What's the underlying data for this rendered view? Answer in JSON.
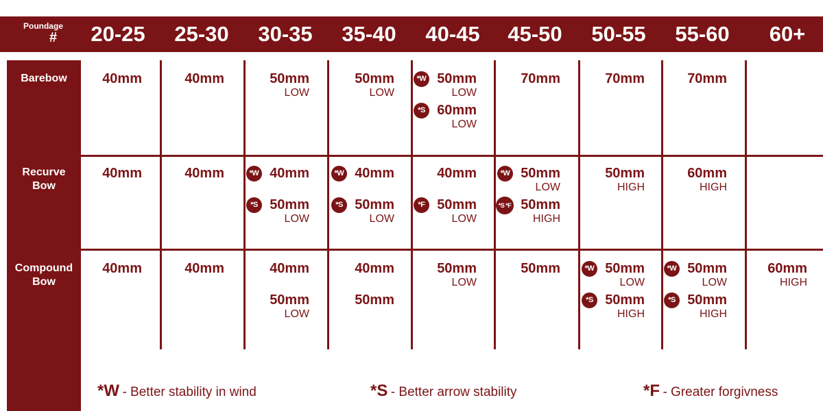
{
  "header": {
    "poundage_label": "Poundage",
    "hash_label": "#",
    "columns": [
      "20-25",
      "25-30",
      "30-35",
      "35-40",
      "40-45",
      "45-50",
      "50-55",
      "55-60",
      "60+"
    ]
  },
  "rows": [
    {
      "label_line1": "Barebow",
      "label_line2": "",
      "cells": [
        [
          {
            "value": "40mm"
          }
        ],
        [
          {
            "value": "40mm"
          }
        ],
        [
          {
            "value": "50mm",
            "sub": "LOW"
          }
        ],
        [
          {
            "value": "50mm",
            "sub": "LOW"
          }
        ],
        [
          {
            "badge": "*W",
            "value": "50mm",
            "sub": "LOW"
          },
          {
            "badge": "*S",
            "value": "60mm",
            "sub": "LOW"
          }
        ],
        [
          {
            "value": "70mm"
          }
        ],
        [
          {
            "value": "70mm"
          }
        ],
        [
          {
            "value": "70mm"
          }
        ],
        []
      ]
    },
    {
      "label_line1": "Recurve",
      "label_line2": "Bow",
      "cells": [
        [
          {
            "value": "40mm"
          }
        ],
        [
          {
            "value": "40mm"
          }
        ],
        [
          {
            "badge": "*W",
            "value": "40mm"
          },
          {
            "badge": "*S",
            "value": "50mm",
            "sub": "LOW"
          }
        ],
        [
          {
            "badge": "*W",
            "value": "40mm"
          },
          {
            "badge": "*S",
            "value": "50mm",
            "sub": "LOW"
          }
        ],
        [
          {
            "value": "40mm"
          },
          {
            "badge": "*F",
            "value": "50mm",
            "sub": "LOW"
          }
        ],
        [
          {
            "badge": "*W",
            "value": "50mm",
            "sub": "LOW"
          },
          {
            "badge": "*S *F",
            "value": "50mm",
            "sub": "HIGH"
          }
        ],
        [
          {
            "value": "50mm",
            "sub": "HIGH"
          }
        ],
        [
          {
            "value": "60mm",
            "sub": "HIGH"
          }
        ],
        []
      ]
    },
    {
      "label_line1": "Compound",
      "label_line2": "Bow",
      "cells": [
        [
          {
            "value": "40mm"
          }
        ],
        [
          {
            "value": "40mm"
          }
        ],
        [
          {
            "value": "40mm"
          },
          {
            "value": "50mm",
            "sub": "LOW"
          }
        ],
        [
          {
            "value": "40mm"
          },
          {
            "value": "50mm"
          }
        ],
        [
          {
            "value": "50mm",
            "sub": "LOW"
          }
        ],
        [
          {
            "value": "50mm"
          }
        ],
        [
          {
            "badge": "*W",
            "value": "50mm",
            "sub": "LOW"
          },
          {
            "badge": "*S",
            "value": "50mm",
            "sub": "HIGH"
          }
        ],
        [
          {
            "badge": "*W",
            "value": "50mm",
            "sub": "LOW"
          },
          {
            "badge": "*S",
            "value": "50mm",
            "sub": "HIGH"
          }
        ],
        [
          {
            "value": "60mm",
            "sub": "HIGH"
          }
        ]
      ]
    }
  ],
  "legend": [
    {
      "code": "*W",
      "desc": "- Better stability in wind"
    },
    {
      "code": "*S",
      "desc": "- Better arrow stability"
    },
    {
      "code": "*F",
      "desc": "- Greater forgivness"
    }
  ],
  "colors": {
    "accent": "#7b1416",
    "text_on_accent": "#ffffff",
    "background": "#ffffff"
  }
}
